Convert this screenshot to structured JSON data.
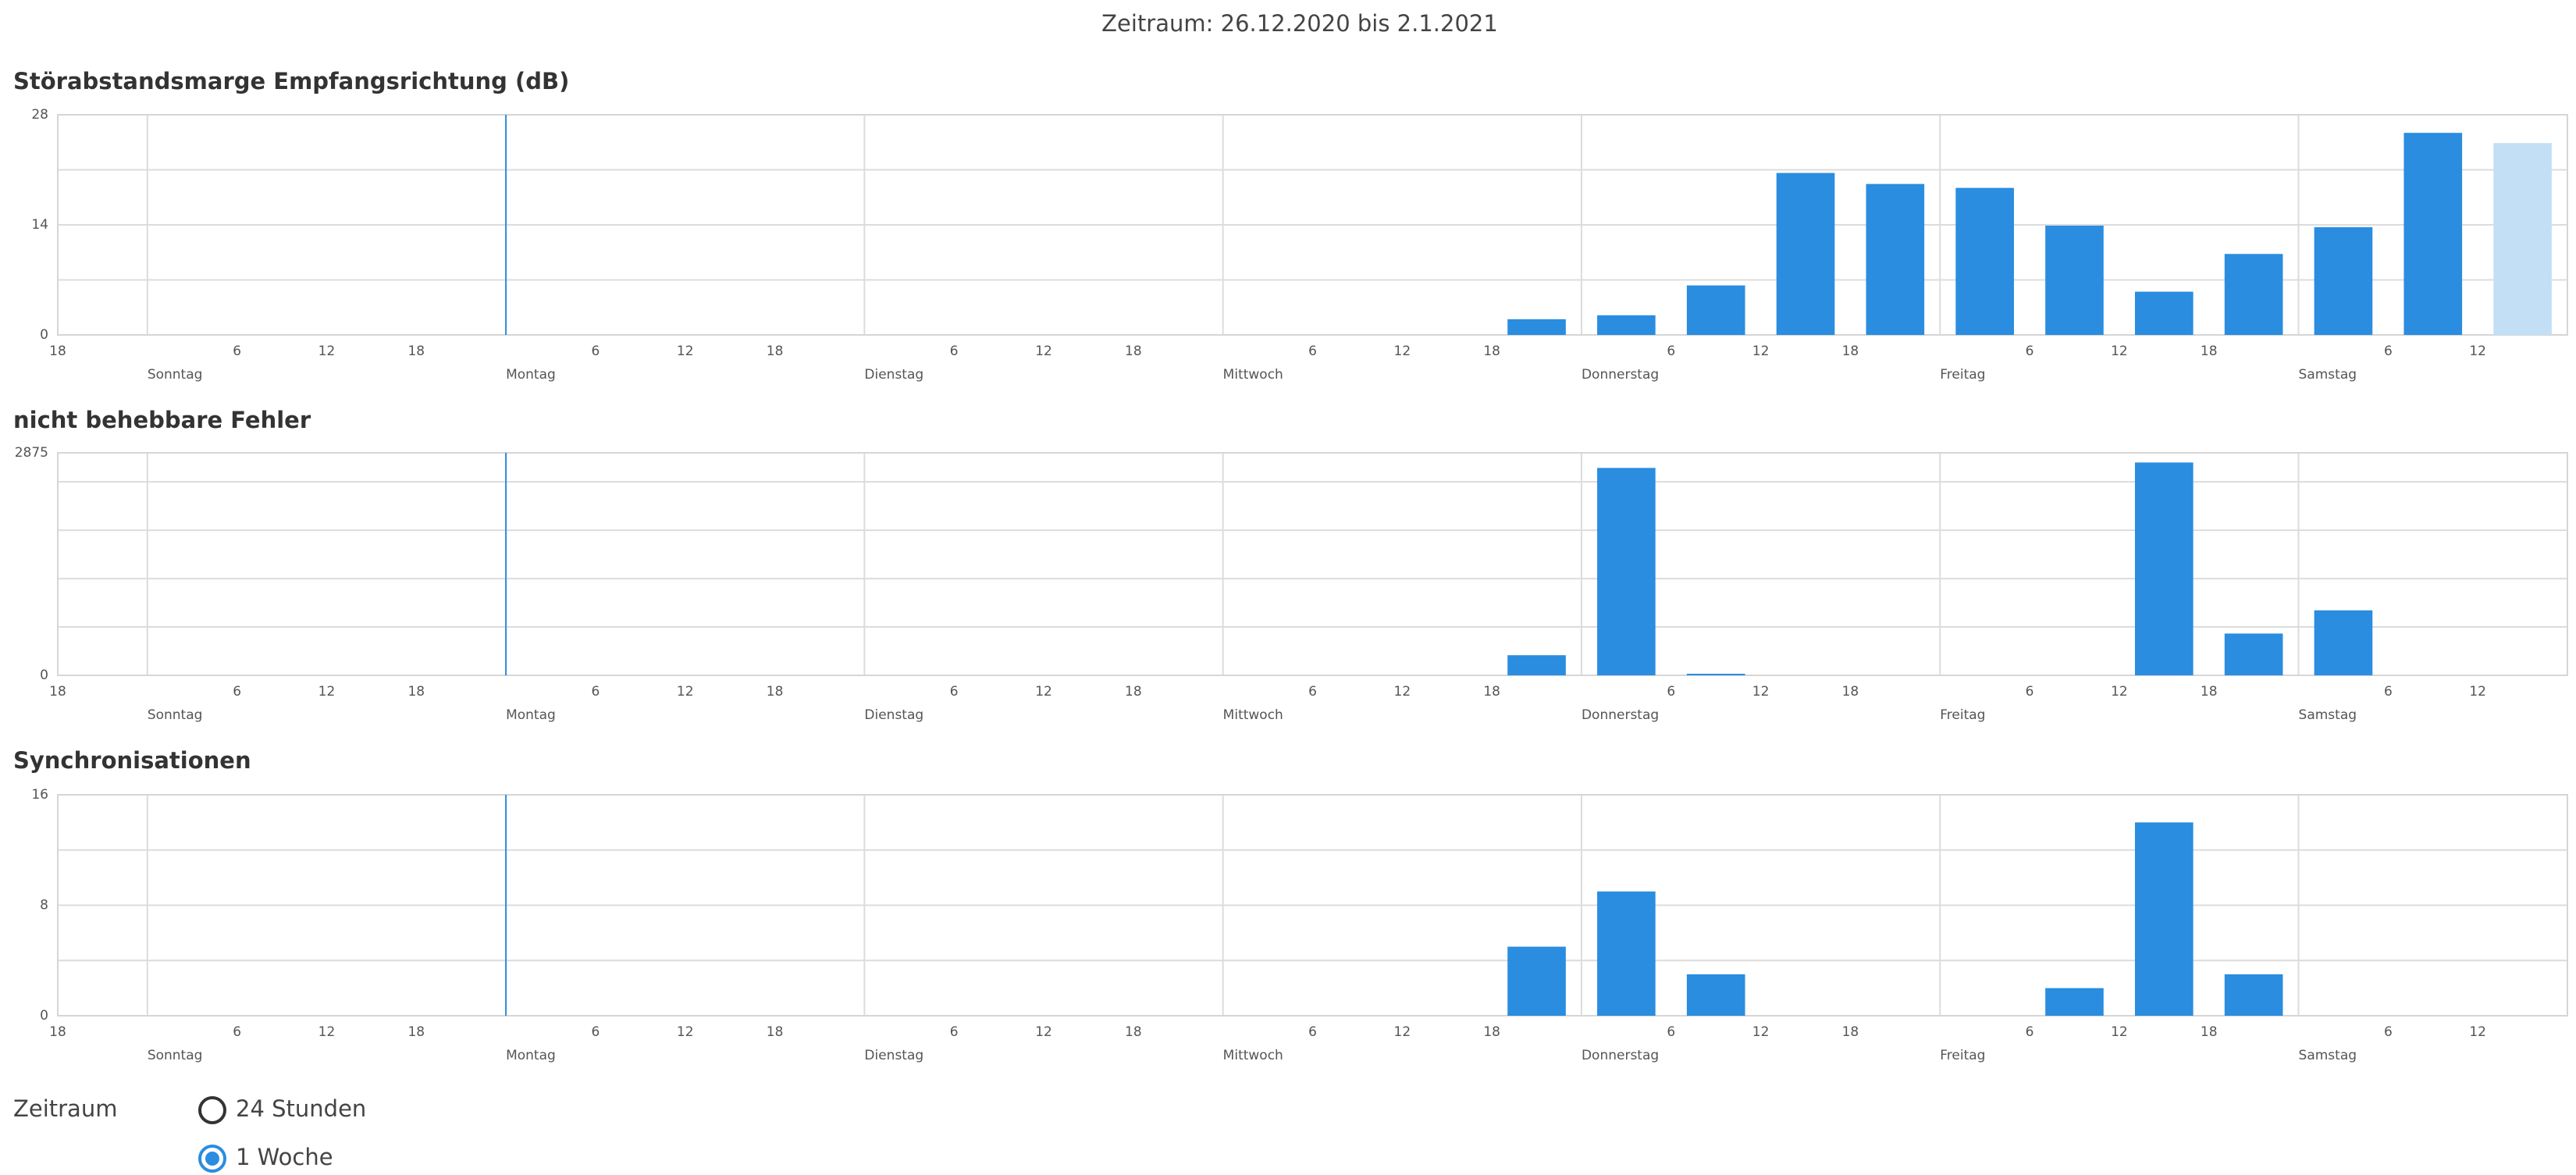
{
  "header": {
    "title": "Zeitraum: 26.12.2020 bis 2.1.2021"
  },
  "time_axis": {
    "xlim": [
      0,
      168
    ],
    "marker_x": 30,
    "hour_ticks": [
      {
        "value": 0,
        "label": "18"
      },
      {
        "value": 12,
        "label": "6"
      },
      {
        "value": 18,
        "label": "12"
      },
      {
        "value": 24,
        "label": "18"
      },
      {
        "value": 36,
        "label": "6"
      },
      {
        "value": 42,
        "label": "12"
      },
      {
        "value": 48,
        "label": "18"
      },
      {
        "value": 60,
        "label": "6"
      },
      {
        "value": 66,
        "label": "12"
      },
      {
        "value": 72,
        "label": "18"
      },
      {
        "value": 84,
        "label": "6"
      },
      {
        "value": 90,
        "label": "12"
      },
      {
        "value": 96,
        "label": "18"
      },
      {
        "value": 108,
        "label": "6"
      },
      {
        "value": 114,
        "label": "12"
      },
      {
        "value": 120,
        "label": "18"
      },
      {
        "value": 132,
        "label": "6"
      },
      {
        "value": 138,
        "label": "12"
      },
      {
        "value": 144,
        "label": "18"
      },
      {
        "value": 156,
        "label": "6"
      },
      {
        "value": 162,
        "label": "12"
      }
    ],
    "day_ticks": [
      {
        "value": 6,
        "label": "Sonntag"
      },
      {
        "value": 30,
        "label": "Montag"
      },
      {
        "value": 54,
        "label": "Dienstag"
      },
      {
        "value": 78,
        "label": "Mittwoch"
      },
      {
        "value": 102,
        "label": "Donnerstag"
      },
      {
        "value": 126,
        "label": "Freitag"
      },
      {
        "value": 150,
        "label": "Samstag"
      }
    ]
  },
  "chart_data": [
    {
      "type": "bar",
      "title": "Störabstandsmarge Empfangsrichtung (dB)",
      "x": [
        99,
        105,
        111,
        117,
        123,
        129,
        135,
        141,
        147,
        153,
        159,
        165
      ],
      "values": [
        2,
        2.5,
        6.3,
        20.6,
        19.2,
        18.7,
        13.9,
        5.5,
        10.3,
        13.7,
        25.7,
        24.4
      ],
      "colors": [
        "#2a8de0",
        "#2a8de0",
        "#2a8de0",
        "#2a8de0",
        "#2a8de0",
        "#2a8de0",
        "#2a8de0",
        "#2a8de0",
        "#2a8de0",
        "#2a8de0",
        "#2a8de0",
        "#c2dff5"
      ],
      "ylim": [
        0,
        28
      ],
      "yticks": [
        0,
        14,
        28
      ],
      "ygrid": [
        0,
        7,
        14,
        21,
        28
      ]
    },
    {
      "type": "bar",
      "title": "nicht behebbare Fehler",
      "x": [
        99,
        105,
        111,
        117,
        123,
        129,
        135,
        141,
        147,
        153,
        159,
        165
      ],
      "values": [
        260,
        2680,
        20,
        0,
        0,
        0,
        0,
        2750,
        540,
        840,
        0,
        0
      ],
      "colors": [
        "#2a8de0",
        "#2a8de0",
        "#2a8de0",
        "#2a8de0",
        "#2a8de0",
        "#2a8de0",
        "#2a8de0",
        "#2a8de0",
        "#2a8de0",
        "#2a8de0",
        "#2a8de0",
        "#2a8de0"
      ],
      "ylim": [
        0,
        2875
      ],
      "yticks": [
        0,
        2875
      ],
      "ygrid": [
        0,
        625,
        1250,
        1875,
        2500,
        2875
      ]
    },
    {
      "type": "bar",
      "title": "Synchronisationen",
      "x": [
        99,
        105,
        111,
        117,
        123,
        129,
        135,
        141,
        147,
        153,
        159,
        165
      ],
      "values": [
        5,
        9,
        3,
        0,
        0,
        0,
        2,
        14,
        3,
        0,
        0,
        0
      ],
      "colors": [
        "#2a8de0",
        "#2a8de0",
        "#2a8de0",
        "#2a8de0",
        "#2a8de0",
        "#2a8de0",
        "#2a8de0",
        "#2a8de0",
        "#2a8de0",
        "#2a8de0",
        "#2a8de0",
        "#2a8de0"
      ],
      "ylim": [
        0,
        16
      ],
      "yticks": [
        0,
        8,
        16
      ],
      "ygrid": [
        0,
        4,
        8,
        12,
        16
      ]
    }
  ],
  "controls": {
    "label": "Zeitraum",
    "options": [
      {
        "label": "24 Stunden",
        "checked": false
      },
      {
        "label": "1 Woche",
        "checked": true
      }
    ]
  }
}
